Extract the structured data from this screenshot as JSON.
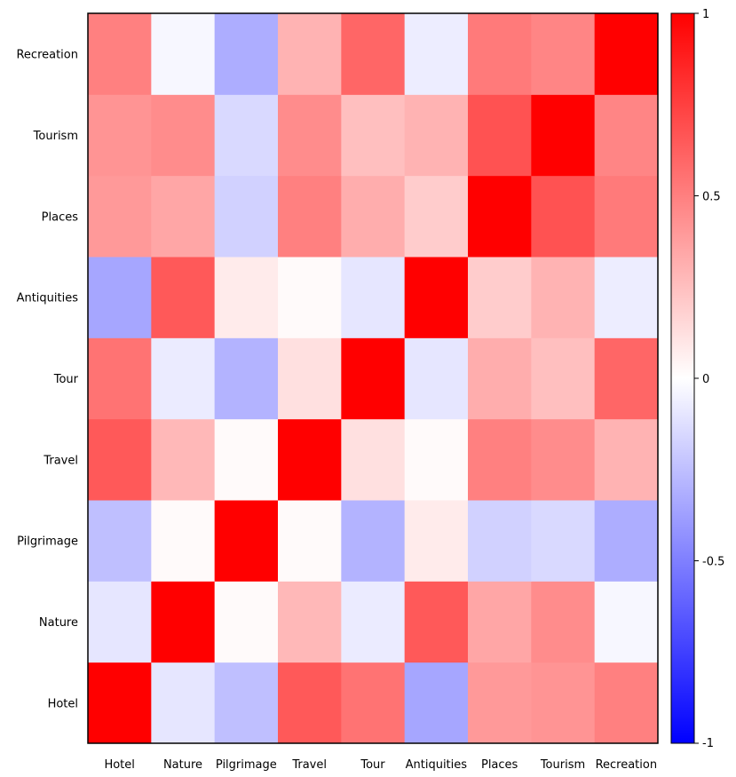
{
  "chart_data": {
    "type": "heatmap",
    "title": "",
    "xlabel": "",
    "ylabel": "",
    "categories": [
      "Hotel",
      "Nature",
      "Pilgrimage",
      "Travel",
      "Tour",
      "Antiquities",
      "Places",
      "Tourism",
      "Recreation"
    ],
    "matrix": [
      [
        1.0,
        -0.1,
        -0.25,
        0.65,
        0.55,
        -0.35,
        0.4,
        0.42,
        0.5
      ],
      [
        -0.1,
        1.0,
        0.02,
        0.28,
        -0.08,
        0.65,
        0.35,
        0.45,
        -0.03
      ],
      [
        -0.25,
        0.02,
        1.0,
        0.02,
        -0.3,
        0.08,
        -0.18,
        -0.15,
        -0.32
      ],
      [
        0.65,
        0.28,
        0.02,
        1.0,
        0.12,
        0.02,
        0.5,
        0.45,
        0.3
      ],
      [
        0.55,
        -0.08,
        -0.3,
        0.12,
        1.0,
        -0.1,
        0.32,
        0.25,
        0.6
      ],
      [
        -0.35,
        0.65,
        0.08,
        0.02,
        -0.1,
        1.0,
        0.2,
        0.3,
        -0.07
      ],
      [
        0.4,
        0.35,
        -0.18,
        0.5,
        0.32,
        0.2,
        1.0,
        0.68,
        0.52
      ],
      [
        0.42,
        0.45,
        -0.15,
        0.45,
        0.25,
        0.3,
        0.68,
        1.0,
        0.48
      ],
      [
        0.5,
        -0.03,
        -0.32,
        0.3,
        0.6,
        -0.07,
        0.52,
        0.48,
        1.0
      ]
    ],
    "colorscale": {
      "min": -1,
      "max": 1,
      "low_color": "#0000ff",
      "mid_color": "#ffffff",
      "high_color": "#ff0000",
      "ticks": [
        1,
        0.5,
        0,
        -0.5,
        -1
      ],
      "tick_labels": [
        "1",
        "0.5",
        "0",
        "-0.5",
        "-1"
      ]
    },
    "grid": false,
    "legend": "right"
  }
}
